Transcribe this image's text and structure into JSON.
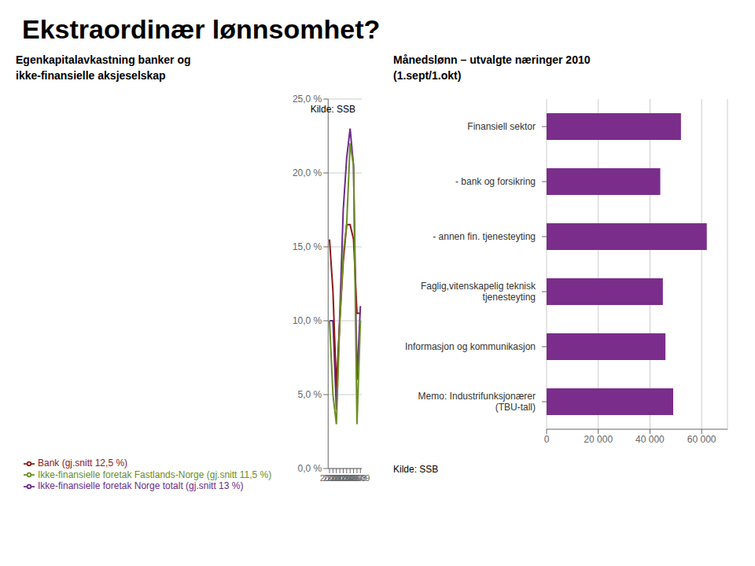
{
  "title": "Ekstraordinær lønnsomhet?",
  "chart_data": [
    {
      "type": "line",
      "title": "Egenkapitalavkastning banker og\nikke-finansielle aksjeselskap",
      "x": [
        2000,
        2001,
        2002,
        2003,
        2004,
        2005,
        2006,
        2007,
        2008,
        2009
      ],
      "xlim": [
        1999.6,
        2009.4
      ],
      "xticks": [
        2000,
        2001,
        2002,
        2003,
        2004,
        2005,
        2006,
        2007,
        2008,
        2009
      ],
      "ylim": [
        0,
        25
      ],
      "yticks": [
        {
          "value": 0.0,
          "label": "0,0 %"
        },
        {
          "value": 5.0,
          "label": "5,0 %"
        },
        {
          "value": 10.0,
          "label": "10,0 %"
        },
        {
          "value": 15.0,
          "label": "15,0 %"
        },
        {
          "value": 20.0,
          "label": "20,0 %"
        },
        {
          "value": 25.0,
          "label": "25,0 %"
        }
      ],
      "grid": true,
      "legend": "bottom",
      "annotations": [
        "Kilde: SSB"
      ],
      "series": [
        {
          "name": "Ikke-finansielle foretak Norge totalt (gj.snitt 13 %)",
          "color": "#6B2C8A",
          "values": [
            10.0,
            10.0,
            4.0,
            10.5,
            17.5,
            21.0,
            23.0,
            20.5,
            6.0,
            11.0
          ]
        },
        {
          "name": "Bank (gj.snitt 12,5 %)",
          "color": "#8B1A1A",
          "values": [
            15.5,
            12.0,
            5.5,
            10.0,
            14.0,
            16.5,
            16.5,
            15.5,
            10.5,
            10.5
          ]
        },
        {
          "name": "Ikke-finansielle foretak Fastlands-Norge (gj.snitt 11,5 %)",
          "color": "#6B8E23",
          "values": [
            10.0,
            5.0,
            3.0,
            10.0,
            14.5,
            16.5,
            22.0,
            20.5,
            3.0,
            10.0
          ]
        }
      ]
    },
    {
      "type": "bar",
      "orientation": "horizontal",
      "title": "Månedslønn – utvalgte næringer 2010\n(1.sept/1.okt)",
      "categories": [
        "Finansiell sektor",
        "- bank og forsikring",
        "- annen fin. tjenesteyting",
        "Faglig,vitenskapelig teknisk\ntjenesteyting",
        "Informasjon og kommunikasjon",
        "Memo:  Industrifunksjonærer\n(TBU-tall)"
      ],
      "values": [
        52000,
        44000,
        62000,
        45000,
        46000,
        49000
      ],
      "color": "#7B2D8B",
      "xlim": [
        0,
        70000
      ],
      "xticks": [
        0,
        {
          "value": 20000,
          "label": "20 000"
        },
        {
          "value": 40000,
          "label": "40 000"
        },
        {
          "value": 60000,
          "label": "60 000"
        }
      ],
      "grid": true,
      "annotations": [
        "Kilde: SSB"
      ]
    }
  ]
}
